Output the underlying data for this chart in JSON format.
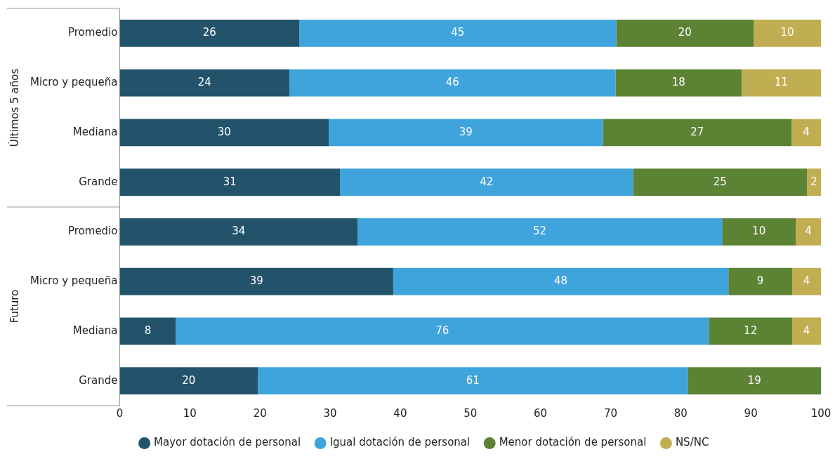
{
  "chart_data": {
    "type": "bar",
    "orientation": "horizontal",
    "stacked": true,
    "categories": [
      "Promedio",
      "Micro y pequeña",
      "Mediana",
      "Grande",
      "Promedio",
      "Micro y pequeña",
      "Mediana",
      "Grande"
    ],
    "series": [
      {
        "name": "Mayor dotación de personal",
        "color": "#22536b",
        "values": [
          25.6,
          24.2,
          29.8,
          31.4,
          33.9,
          39.0,
          8.0,
          19.7
        ],
        "value_labels": [
          "26",
          "24",
          "30",
          "31",
          "34",
          "39",
          "8",
          "20"
        ]
      },
      {
        "name": "Igual dotación de personal",
        "color": "#3fa4dc",
        "values": [
          45.2,
          46.5,
          39.1,
          41.8,
          52.0,
          47.8,
          76.0,
          61.3
        ],
        "value_labels": [
          "45",
          "46",
          "39",
          "42",
          "52",
          "48",
          "76",
          "61"
        ]
      },
      {
        "name": "Menor dotación de personal",
        "color": "#5c8234",
        "values": [
          19.6,
          18.0,
          26.9,
          24.8,
          10.5,
          9.1,
          11.9,
          19.0
        ],
        "value_labels": [
          "20",
          "18",
          "27",
          "25",
          "10",
          "9",
          "12",
          "19"
        ]
      },
      {
        "name": "NS/NC",
        "color": "#c2ae52",
        "values": [
          9.6,
          11.3,
          4.2,
          2.0,
          3.6,
          4.1,
          4.1,
          null
        ],
        "value_labels": [
          "10",
          "11",
          "4",
          "2",
          "4",
          "4",
          "4",
          null
        ]
      }
    ],
    "xlim": [
      0,
      100
    ],
    "xticks": [
      0,
      10,
      20,
      30,
      40,
      50,
      60,
      70,
      80,
      90,
      100
    ],
    "grid": false,
    "legend": "bottom",
    "annotations": [
      "Últimos 5 años",
      "Futuro"
    ]
  }
}
